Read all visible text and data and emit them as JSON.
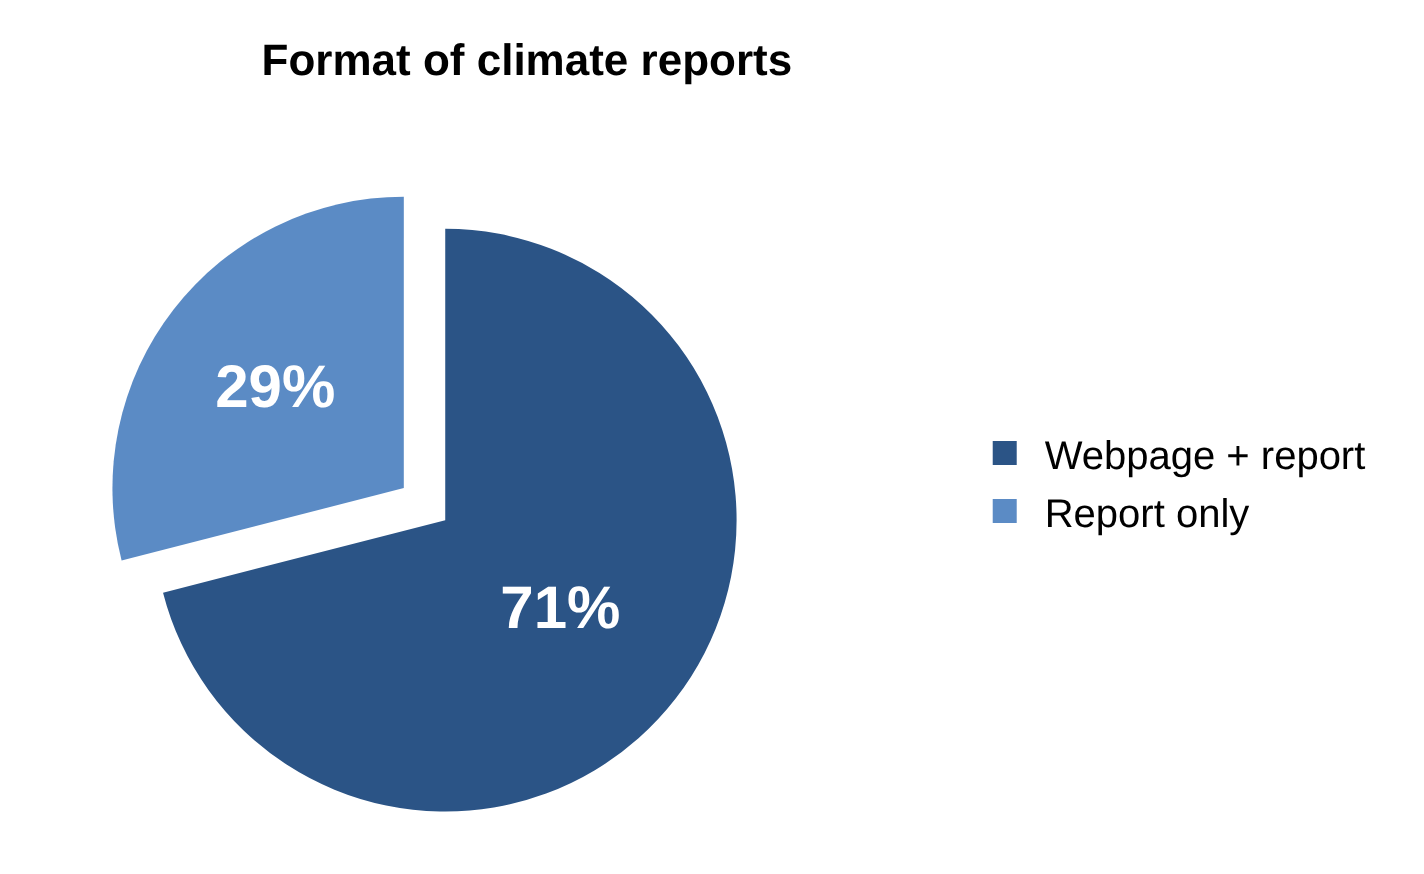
{
  "chart_data": {
    "type": "pie",
    "title": "Format of climate reports",
    "categories": [
      "Webpage + report",
      "Report only"
    ],
    "values": [
      71,
      29
    ],
    "colors": [
      "#2b5486",
      "#5b8bc5"
    ],
    "value_labels": [
      "71%",
      "29%"
    ],
    "legend": "right"
  }
}
